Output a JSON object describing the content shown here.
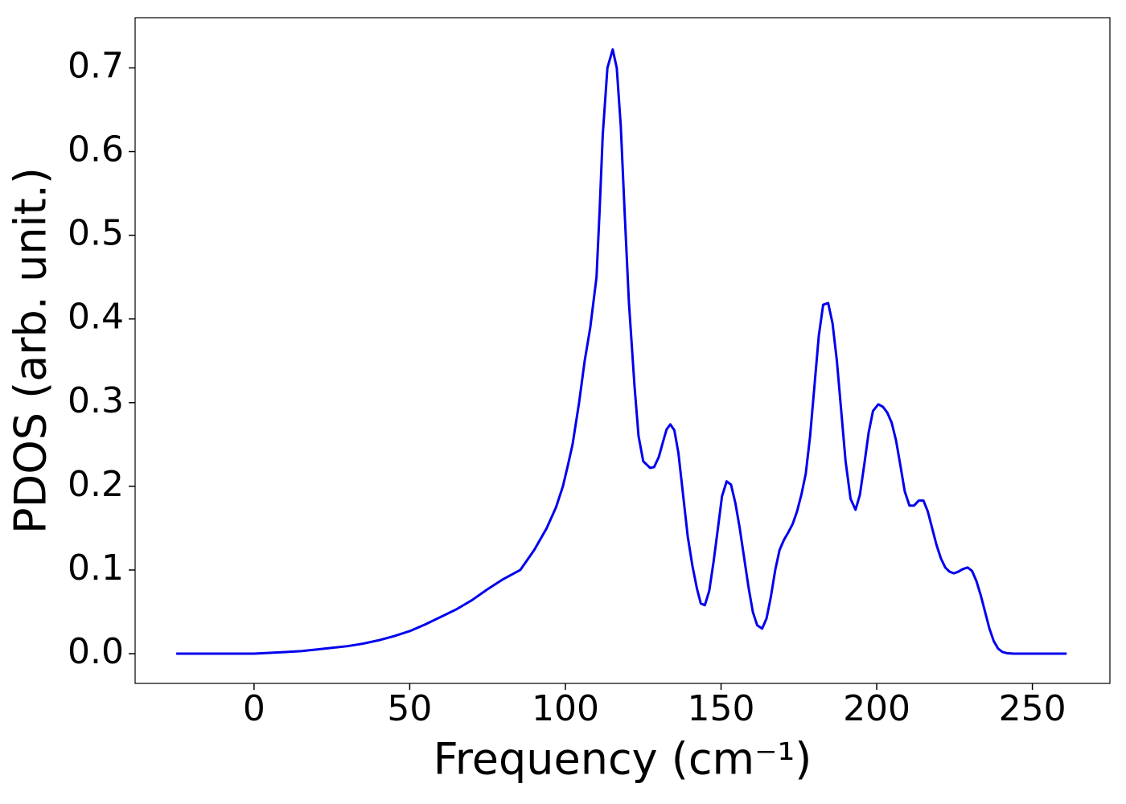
{
  "chart_data": {
    "type": "line",
    "xlabel": "Frequency (cm⁻¹)",
    "ylabel": "PDOS (arb. unit.)",
    "xlim": [
      -38.2,
      274.9
    ],
    "ylim": [
      -0.0355,
      0.76
    ],
    "xticks": [
      0,
      50,
      100,
      150,
      200,
      250
    ],
    "yticks": [
      {
        "value": 0,
        "label": "0.0"
      },
      0.1,
      0.2,
      0.3,
      0.4,
      0.5,
      0.6,
      0.7
    ],
    "grid": false,
    "series": [
      {
        "color": "#0000ee",
        "x": [
          -25,
          0,
          5,
          10,
          15,
          20,
          25,
          30,
          35,
          40,
          45,
          50,
          55,
          60,
          65,
          70,
          75,
          80,
          85.5,
          90,
          94,
          97,
          99.2,
          100.8,
          102.3,
          104.4,
          106.2,
          108,
          110,
          111,
          112,
          113.5,
          115.2,
          116.5,
          117.8,
          119,
          120.4,
          122.2,
          123.5,
          125,
          127.2,
          128.5,
          130,
          131.5,
          132.5,
          133.7,
          135,
          136.3,
          137.8,
          139.3,
          140.8,
          142.3,
          143.5,
          144.8,
          146.2,
          147.6,
          149,
          150.3,
          151.8,
          153.2,
          154.6,
          156,
          157.4,
          158.8,
          160.2,
          161.6,
          163.2,
          164.6,
          166,
          167.4,
          168.8,
          170.2,
          171.6,
          173,
          174.4,
          175.8,
          177.2,
          178.6,
          180,
          181.4,
          182.8,
          184.4,
          185.8,
          187.2,
          188.6,
          190,
          191.6,
          193.2,
          194.6,
          196,
          197.4,
          198.8,
          200.5,
          202,
          203.4,
          204.8,
          206.2,
          207.6,
          209,
          210.5,
          212,
          213.5,
          215,
          216.4,
          217.8,
          219.2,
          220.6,
          222,
          223.4,
          224.8,
          226.2,
          227.6,
          229.2,
          230.6,
          232,
          233.4,
          234.8,
          236.2,
          237.6,
          239,
          240.4,
          242,
          244,
          261
        ],
        "values": [
          0,
          0,
          0.001,
          0.002,
          0.003,
          0.005,
          0.007,
          0.009,
          0.012,
          0.016,
          0.021,
          0.027,
          0.035,
          0.044,
          0.053,
          0.064,
          0.077,
          0.089,
          0.1,
          0.124,
          0.15,
          0.175,
          0.2,
          0.225,
          0.25,
          0.3,
          0.35,
          0.39,
          0.45,
          0.53,
          0.62,
          0.7,
          0.722,
          0.7,
          0.63,
          0.53,
          0.42,
          0.32,
          0.26,
          0.23,
          0.222,
          0.223,
          0.235,
          0.255,
          0.268,
          0.274,
          0.267,
          0.24,
          0.19,
          0.14,
          0.105,
          0.077,
          0.06,
          0.058,
          0.075,
          0.11,
          0.15,
          0.188,
          0.206,
          0.202,
          0.18,
          0.15,
          0.115,
          0.08,
          0.05,
          0.034,
          0.03,
          0.042,
          0.068,
          0.1,
          0.124,
          0.136,
          0.145,
          0.155,
          0.17,
          0.19,
          0.215,
          0.26,
          0.32,
          0.38,
          0.417,
          0.419,
          0.395,
          0.35,
          0.29,
          0.23,
          0.185,
          0.172,
          0.19,
          0.226,
          0.264,
          0.29,
          0.298,
          0.295,
          0.288,
          0.276,
          0.255,
          0.225,
          0.194,
          0.177,
          0.177,
          0.183,
          0.183,
          0.17,
          0.15,
          0.13,
          0.114,
          0.103,
          0.098,
          0.096,
          0.098,
          0.101,
          0.103,
          0.099,
          0.087,
          0.07,
          0.05,
          0.03,
          0.015,
          0.006,
          0.002,
          0.0005,
          0,
          0
        ]
      }
    ]
  }
}
